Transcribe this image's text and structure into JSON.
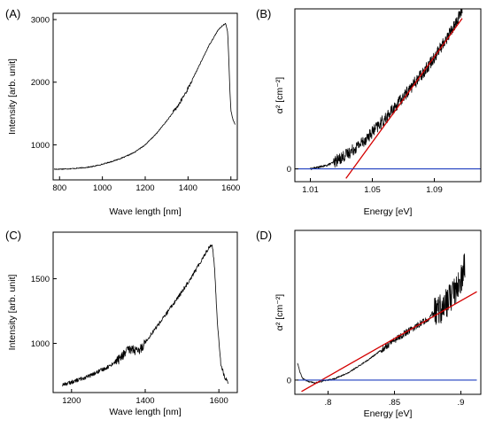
{
  "chart_data": [
    {
      "panel_label": "(A)",
      "type": "line",
      "xlabel": "Wave length [nm]",
      "ylabel": "Intensity [arb. unit]",
      "xlim": [
        770,
        1630
      ],
      "ylim": [
        440,
        3100
      ],
      "xticks": [
        800,
        1000,
        1200,
        1400,
        1600
      ],
      "yticks": [
        1000,
        2000,
        3000
      ],
      "series": [
        {
          "color": "#000000",
          "x": [
            775,
            800,
            850,
            900,
            950,
            1000,
            1050,
            1100,
            1150,
            1200,
            1250,
            1300,
            1340,
            1360,
            1380,
            1400,
            1450,
            1500,
            1540,
            1560,
            1575,
            1585,
            1590,
            1595,
            1600,
            1610,
            1620
          ],
          "y": [
            610,
            612,
            618,
            630,
            650,
            690,
            740,
            800,
            880,
            1000,
            1170,
            1380,
            1560,
            1660,
            1780,
            1900,
            2250,
            2600,
            2830,
            2900,
            2940,
            2800,
            2400,
            1900,
            1550,
            1400,
            1330
          ]
        }
      ]
    },
    {
      "panel_label": "(B)",
      "type": "line",
      "xlabel": "Energy [eV]",
      "ylabel": "α² [cm⁻²]",
      "xlim": [
        1.0,
        1.12
      ],
      "ylim": [
        -0.08,
        1.0
      ],
      "xticks": [
        1.01,
        1.05,
        1.09
      ],
      "yticks": [
        0
      ],
      "series": [
        {
          "color": "#000000",
          "x": [
            1.01,
            1.015,
            1.02,
            1.025,
            1.03,
            1.035,
            1.04,
            1.045,
            1.05,
            1.055,
            1.06,
            1.065,
            1.07,
            1.075,
            1.08,
            1.085,
            1.09,
            1.095,
            1.1,
            1.105,
            1.108
          ],
          "y": [
            0.0,
            0.01,
            0.02,
            0.04,
            0.07,
            0.1,
            0.14,
            0.18,
            0.23,
            0.28,
            0.33,
            0.39,
            0.45,
            0.51,
            0.57,
            0.63,
            0.7,
            0.77,
            0.85,
            0.93,
            1.0
          ]
        },
        {
          "color": "#d40000",
          "x": [
            1.033,
            1.108
          ],
          "y": [
            -0.06,
            0.94
          ]
        },
        {
          "color": "#1f3fbf",
          "x": [
            1.0,
            1.12
          ],
          "y": [
            0,
            0
          ]
        }
      ]
    },
    {
      "panel_label": "(C)",
      "type": "line",
      "xlabel": "Wave length [nm]",
      "ylabel": "Intensity [arb. unit]",
      "xlim": [
        1150,
        1650
      ],
      "ylim": [
        620,
        1860
      ],
      "xticks": [
        1200,
        1400,
        1600
      ],
      "yticks": [
        1000,
        1500
      ],
      "series": [
        {
          "color": "#000000",
          "x": [
            1175,
            1200,
            1250,
            1300,
            1330,
            1350,
            1365,
            1380,
            1400,
            1450,
            1500,
            1540,
            1560,
            1575,
            1582,
            1588,
            1595,
            1605,
            1615,
            1625
          ],
          "y": [
            680,
            700,
            750,
            820,
            880,
            940,
            960,
            930,
            1010,
            1200,
            1400,
            1580,
            1680,
            1750,
            1760,
            1600,
            1200,
            850,
            740,
            700
          ]
        }
      ]
    },
    {
      "panel_label": "(D)",
      "type": "line",
      "xlabel": "Energy [eV]",
      "ylabel": "α² [cm⁻²]",
      "xlim": [
        0.775,
        0.915
      ],
      "ylim": [
        -0.1,
        1.05
      ],
      "xticks": [
        0.8,
        0.85,
        0.9
      ],
      "yticks": [
        0
      ],
      "series": [
        {
          "color": "#000000",
          "x": [
            0.777,
            0.779,
            0.781,
            0.785,
            0.79,
            0.795,
            0.8,
            0.805,
            0.81,
            0.815,
            0.82,
            0.83,
            0.84,
            0.85,
            0.86,
            0.87,
            0.875,
            0.88,
            0.885,
            0.89,
            0.895,
            0.9,
            0.903
          ],
          "y": [
            0.12,
            0.05,
            0.01,
            -0.01,
            -0.02,
            -0.01,
            0.0,
            0.01,
            0.03,
            0.05,
            0.08,
            0.14,
            0.21,
            0.28,
            0.34,
            0.4,
            0.43,
            0.47,
            0.5,
            0.55,
            0.62,
            0.7,
            0.8
          ]
        },
        {
          "color": "#d40000",
          "x": [
            0.78,
            0.912
          ],
          "y": [
            -0.08,
            0.62
          ]
        },
        {
          "color": "#1f3fbf",
          "x": [
            0.777,
            0.912
          ],
          "y": [
            0,
            0
          ]
        }
      ]
    }
  ]
}
